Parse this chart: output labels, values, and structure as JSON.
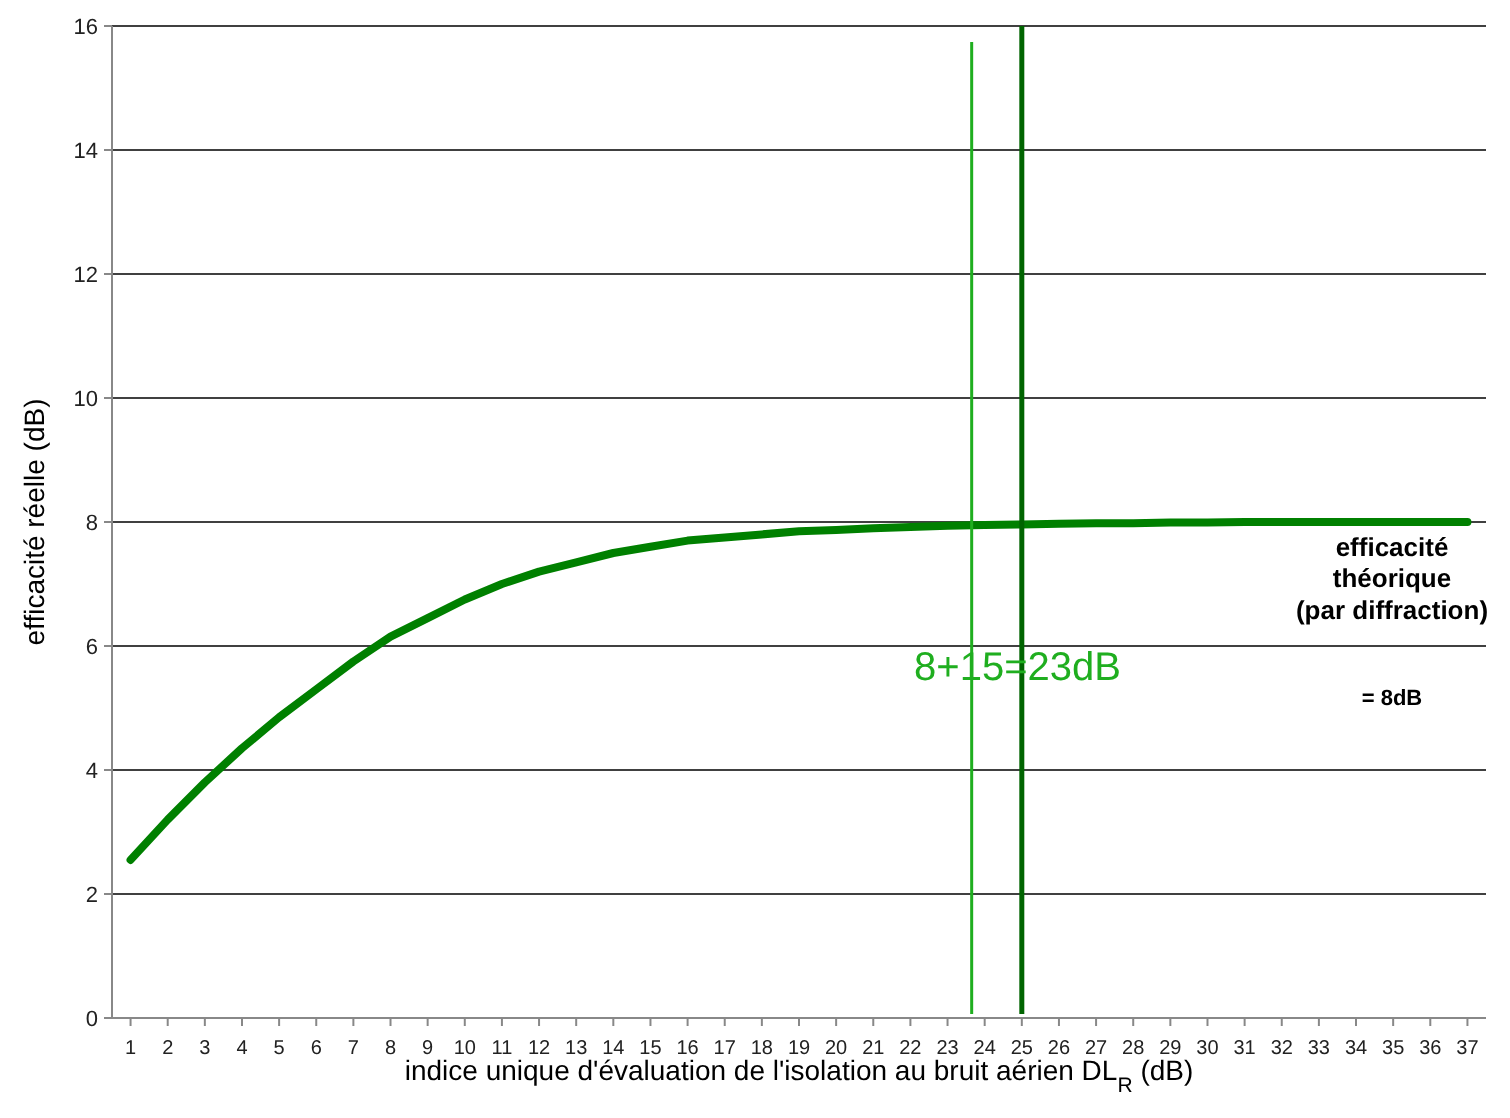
{
  "chart_data": {
    "type": "line",
    "xlabel": "indice unique d'évaluation de l'isolation au bruit aérien DL$_{R}$ (dB)",
    "ylabel": "efficacité réelle (dB)",
    "x": [
      1,
      2,
      3,
      4,
      5,
      6,
      7,
      8,
      9,
      10,
      11,
      12,
      13,
      14,
      15,
      16,
      17,
      18,
      19,
      20,
      21,
      22,
      23,
      24,
      25,
      26,
      27,
      28,
      29,
      30,
      31,
      32,
      33,
      34,
      35,
      36,
      37
    ],
    "series": [
      {
        "color": "#008000",
        "values": [
          2.55,
          3.2,
          3.8,
          4.35,
          4.85,
          5.3,
          5.75,
          6.15,
          6.45,
          6.75,
          7.0,
          7.2,
          7.35,
          7.5,
          7.6,
          7.7,
          7.75,
          7.8,
          7.85,
          7.87,
          7.9,
          7.92,
          7.94,
          7.95,
          7.96,
          7.97,
          7.98,
          7.98,
          7.99,
          7.99,
          8.0,
          8.0,
          8.0,
          8.0,
          8.0,
          8.0,
          8.0
        ]
      }
    ],
    "xlim": [
      0.5,
      37.5
    ],
    "xticks": [
      1,
      2,
      3,
      4,
      5,
      6,
      7,
      8,
      9,
      10,
      11,
      12,
      13,
      14,
      15,
      16,
      17,
      18,
      19,
      20,
      21,
      22,
      23,
      24,
      25,
      26,
      27,
      28,
      29,
      30,
      31,
      32,
      33,
      34,
      35,
      36,
      37
    ],
    "ylim": [
      0,
      16
    ],
    "yticks": [
      0,
      2,
      4,
      6,
      8,
      10,
      12,
      14,
      16
    ],
    "grid": "y",
    "marker": "none",
    "line_style": "solid",
    "ref_lines": [
      {
        "axis": "x",
        "value": 23.65,
        "color": "#1fae1f"
      },
      {
        "axis": "x",
        "value": 25,
        "color": "#006400"
      }
    ],
    "annotations": [
      "8+15=23dB",
      "efficacité\nthéorique\n(par diffraction)",
      "= 8dB"
    ]
  }
}
